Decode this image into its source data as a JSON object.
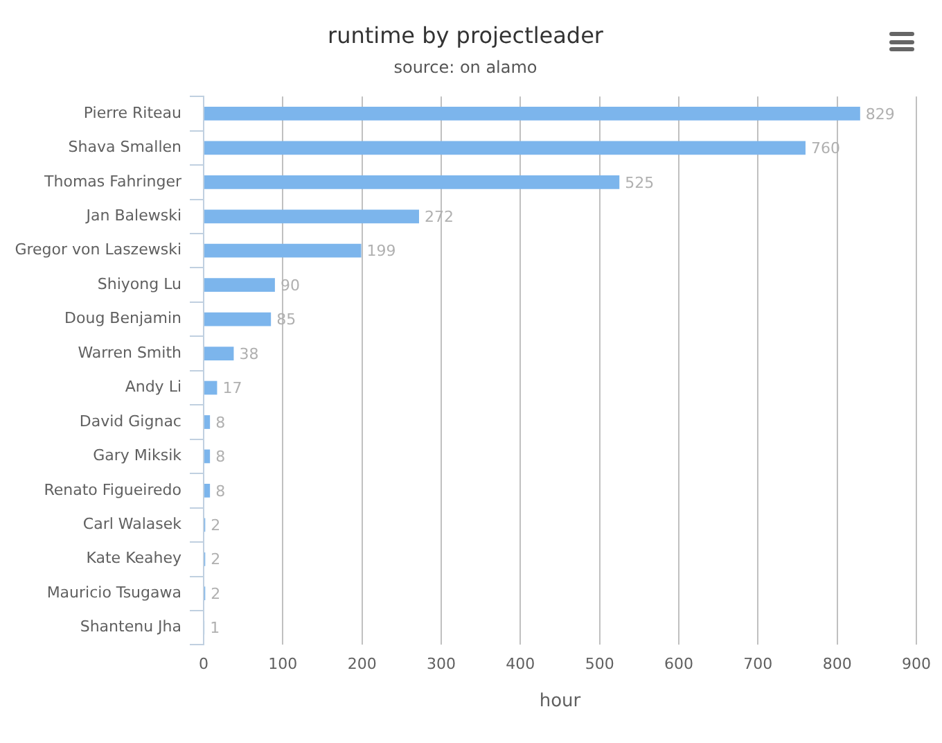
{
  "chart_data": {
    "type": "bar",
    "orientation": "horizontal",
    "title": "runtime by projectleader",
    "subtitle": "source: on alamo",
    "xlabel": "hour",
    "categories": [
      "Pierre Riteau",
      "Shava Smallen",
      "Thomas Fahringer",
      "Jan Balewski",
      "Gregor von Laszewski",
      "Shiyong Lu",
      "Doug Benjamin",
      "Warren Smith",
      "Andy Li",
      "David Gignac",
      "Gary Miksik",
      "Renato Figueiredo",
      "Carl Walasek",
      "Kate Keahey",
      "Mauricio Tsugawa",
      "Shantenu Jha"
    ],
    "values": [
      829,
      760,
      525,
      272,
      199,
      90,
      85,
      38,
      17,
      8,
      8,
      8,
      2,
      2,
      2,
      1
    ],
    "color": "#7cb5ec",
    "xlim": [
      0,
      900
    ],
    "xticks": [
      0,
      100,
      200,
      300,
      400,
      500,
      600,
      700,
      800,
      900
    ],
    "grid": "x",
    "data_labels": true
  }
}
